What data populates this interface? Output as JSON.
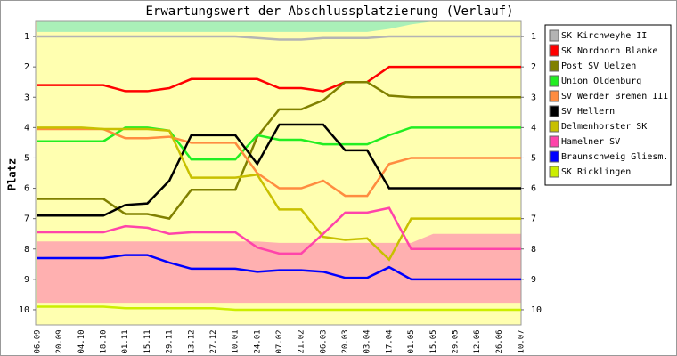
{
  "chart_data": {
    "type": "line",
    "title": "Erwartungswert der Abschlussplatzierung (Verlauf)",
    "y_label": "Platz",
    "categories": [
      "06.09",
      "20.09",
      "04.10",
      "18.10",
      "01.11",
      "15.11",
      "29.11",
      "13.12",
      "27.12",
      "10.01",
      "24.01",
      "07.02",
      "21.02",
      "06.03",
      "20.03",
      "03.04",
      "17.04",
      "01.05",
      "15.05",
      "29.05",
      "12.06",
      "26.06",
      "10.07"
    ],
    "ylim": [
      10.5,
      0.5
    ],
    "yticks": [
      1,
      2,
      3,
      4,
      5,
      6,
      7,
      8,
      9,
      10
    ],
    "background": "#ffffb0",
    "zones": [
      {
        "color": "#aaf0b8",
        "from": [
          0.5,
          0.5,
          0.5,
          0.5,
          0.5,
          0.5,
          0.5,
          0.5,
          0.5,
          0.5,
          0.5,
          0.5,
          0.5,
          0.5,
          0.5,
          0.5,
          0.5,
          0.5,
          0.5,
          0.5,
          0.5,
          0.5,
          0.5
        ],
        "to": [
          0.85,
          0.85,
          0.85,
          0.85,
          0.85,
          0.85,
          0.85,
          0.85,
          0.85,
          0.85,
          0.85,
          0.85,
          0.85,
          0.85,
          0.85,
          0.85,
          0.75,
          0.6,
          0.5,
          0.5,
          0.5,
          0.5,
          0.5
        ]
      },
      {
        "color": "#ffb0b0",
        "from": [
          7.75,
          7.75,
          7.75,
          7.75,
          7.75,
          7.75,
          7.75,
          7.75,
          7.75,
          7.75,
          7.75,
          7.8,
          7.8,
          7.8,
          7.8,
          7.8,
          7.8,
          7.8,
          7.5,
          7.5,
          7.5,
          7.5,
          7.5
        ],
        "to": [
          9.8,
          9.8,
          9.8,
          9.8,
          9.8,
          9.8,
          9.8,
          9.8,
          9.8,
          9.8,
          9.8,
          9.8,
          9.8,
          9.8,
          9.8,
          9.8,
          9.8,
          9.8,
          9.8,
          9.8,
          9.8,
          9.8,
          9.8
        ]
      }
    ],
    "series": [
      {
        "name": "SK Kirchweyhe II",
        "color": "#b4b4b4",
        "values": [
          1,
          1,
          1,
          1,
          1,
          1,
          1,
          1,
          1,
          1,
          1.05,
          1.1,
          1.1,
          1.05,
          1.05,
          1.05,
          1,
          1,
          1,
          1,
          1,
          1,
          1
        ]
      },
      {
        "name": "SK Nordhorn Blanke",
        "color": "#ff0000",
        "values": [
          2.6,
          2.6,
          2.6,
          2.6,
          2.8,
          2.8,
          2.7,
          2.4,
          2.4,
          2.4,
          2.4,
          2.7,
          2.7,
          2.8,
          2.5,
          2.5,
          2,
          2,
          2,
          2,
          2,
          2,
          2
        ]
      },
      {
        "name": "Post SV Uelzen",
        "color": "#808000",
        "values": [
          6.35,
          6.35,
          6.35,
          6.35,
          6.85,
          6.85,
          7,
          6.05,
          6.05,
          6.05,
          4.3,
          3.4,
          3.4,
          3.1,
          2.5,
          2.5,
          2.95,
          3,
          3,
          3,
          3,
          3,
          3
        ]
      },
      {
        "name": "Union Oldenburg",
        "color": "#22ee22",
        "values": [
          4.45,
          4.45,
          4.45,
          4.45,
          4,
          4,
          4.1,
          5.05,
          5.05,
          5.05,
          4.25,
          4.4,
          4.4,
          4.55,
          4.55,
          4.55,
          4.25,
          4,
          4,
          4,
          4,
          4,
          4
        ]
      },
      {
        "name": "SV Werder Bremen III",
        "color": "#ff8c40",
        "values": [
          4.05,
          4.05,
          4.05,
          4.05,
          4.35,
          4.35,
          4.3,
          4.5,
          4.5,
          4.5,
          5.5,
          6,
          6,
          5.75,
          6.25,
          6.25,
          5.2,
          5,
          5,
          5,
          5,
          5,
          5
        ]
      },
      {
        "name": "SV Hellern",
        "color": "#000000",
        "values": [
          6.9,
          6.9,
          6.9,
          6.9,
          6.55,
          6.5,
          5.75,
          4.25,
          4.25,
          4.25,
          5.2,
          3.9,
          3.9,
          3.9,
          4.75,
          4.75,
          6,
          6,
          6,
          6,
          6,
          6,
          6
        ]
      },
      {
        "name": "Delmenhorster SK",
        "color": "#c8c000",
        "values": [
          4,
          4,
          4,
          4.05,
          4.05,
          4.05,
          4.1,
          5.65,
          5.65,
          5.65,
          5.55,
          6.7,
          6.7,
          7.6,
          7.7,
          7.65,
          8.35,
          7,
          7,
          7,
          7,
          7,
          7
        ]
      },
      {
        "name": "Hamelner SV",
        "color": "#ff44aa",
        "values": [
          7.45,
          7.45,
          7.45,
          7.45,
          7.25,
          7.3,
          7.5,
          7.45,
          7.45,
          7.45,
          7.95,
          8.15,
          8.15,
          7.5,
          6.8,
          6.8,
          6.65,
          8,
          8,
          8,
          8,
          8,
          8
        ]
      },
      {
        "name": "Braunschweig Gliesm.",
        "color": "#0000ff",
        "values": [
          8.3,
          8.3,
          8.3,
          8.3,
          8.2,
          8.2,
          8.45,
          8.65,
          8.65,
          8.65,
          8.75,
          8.7,
          8.7,
          8.75,
          8.95,
          8.95,
          8.6,
          9,
          9,
          9,
          9,
          9,
          9
        ]
      },
      {
        "name": "SK Ricklingen",
        "color": "#ccee00",
        "values": [
          9.9,
          9.9,
          9.9,
          9.9,
          9.95,
          9.95,
          9.95,
          9.95,
          9.95,
          10,
          10,
          10,
          10,
          10,
          10,
          10,
          10,
          10,
          10,
          10,
          10,
          10,
          10
        ]
      }
    ]
  }
}
